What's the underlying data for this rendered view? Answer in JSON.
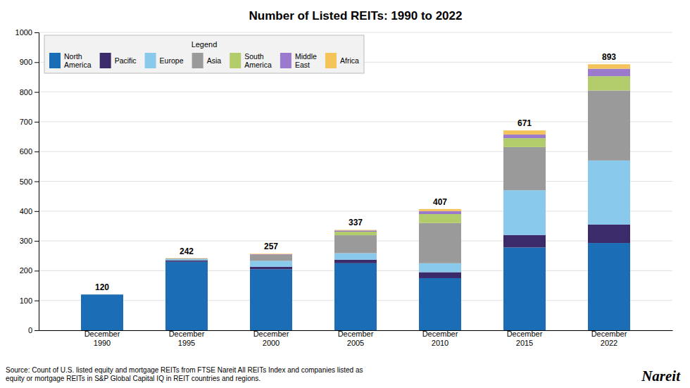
{
  "chart_data": {
    "type": "bar",
    "title": "Number of Listed REITs: 1990 to 2022",
    "categories": [
      "December\n1990",
      "December\n1995",
      "December\n2000",
      "December\n2005",
      "December\n2010",
      "December\n2015",
      "December\n2022"
    ],
    "series": [
      {
        "name": "North\nAmerica",
        "color": "#1B6DB5",
        "values": [
          120,
          230,
          205,
          225,
          175,
          278,
          293
        ]
      },
      {
        "name": "Pacific",
        "color": "#3B2B6A",
        "values": [
          0,
          5,
          8,
          12,
          20,
          42,
          62
        ]
      },
      {
        "name": "Europe",
        "color": "#89CAEC",
        "values": [
          0,
          4,
          20,
          22,
          30,
          150,
          215
        ]
      },
      {
        "name": "Asia",
        "color": "#9A9A9A",
        "values": [
          0,
          2,
          20,
          60,
          135,
          145,
          235
        ]
      },
      {
        "name": "South\nAmerica",
        "color": "#B2CC6B",
        "values": [
          0,
          0,
          0,
          12,
          30,
          30,
          48
        ]
      },
      {
        "name": "Middle\nEast",
        "color": "#9B79CC",
        "values": [
          0,
          0,
          2,
          4,
          10,
          12,
          25
        ]
      },
      {
        "name": "Africa",
        "color": "#F4C45A",
        "values": [
          0,
          1,
          2,
          2,
          7,
          14,
          15
        ]
      }
    ],
    "totals": [
      120,
      242,
      257,
      337,
      407,
      671,
      893
    ],
    "stacked": true,
    "ylim": [
      0,
      1000
    ],
    "yticks": [
      0,
      100,
      200,
      300,
      400,
      500,
      600,
      700,
      800,
      900,
      1000
    ],
    "grid": true,
    "legend": "upper left",
    "legend_title": "Legend",
    "annotations": [
      "Source: Count of U.S. listed equity and mortgage REITs from FTSE Nareit All REITs Index and companies listed as\nequity or mortgage REITs in S&P Global Capital IQ in REIT countries and regions.",
      "Nareit"
    ]
  }
}
